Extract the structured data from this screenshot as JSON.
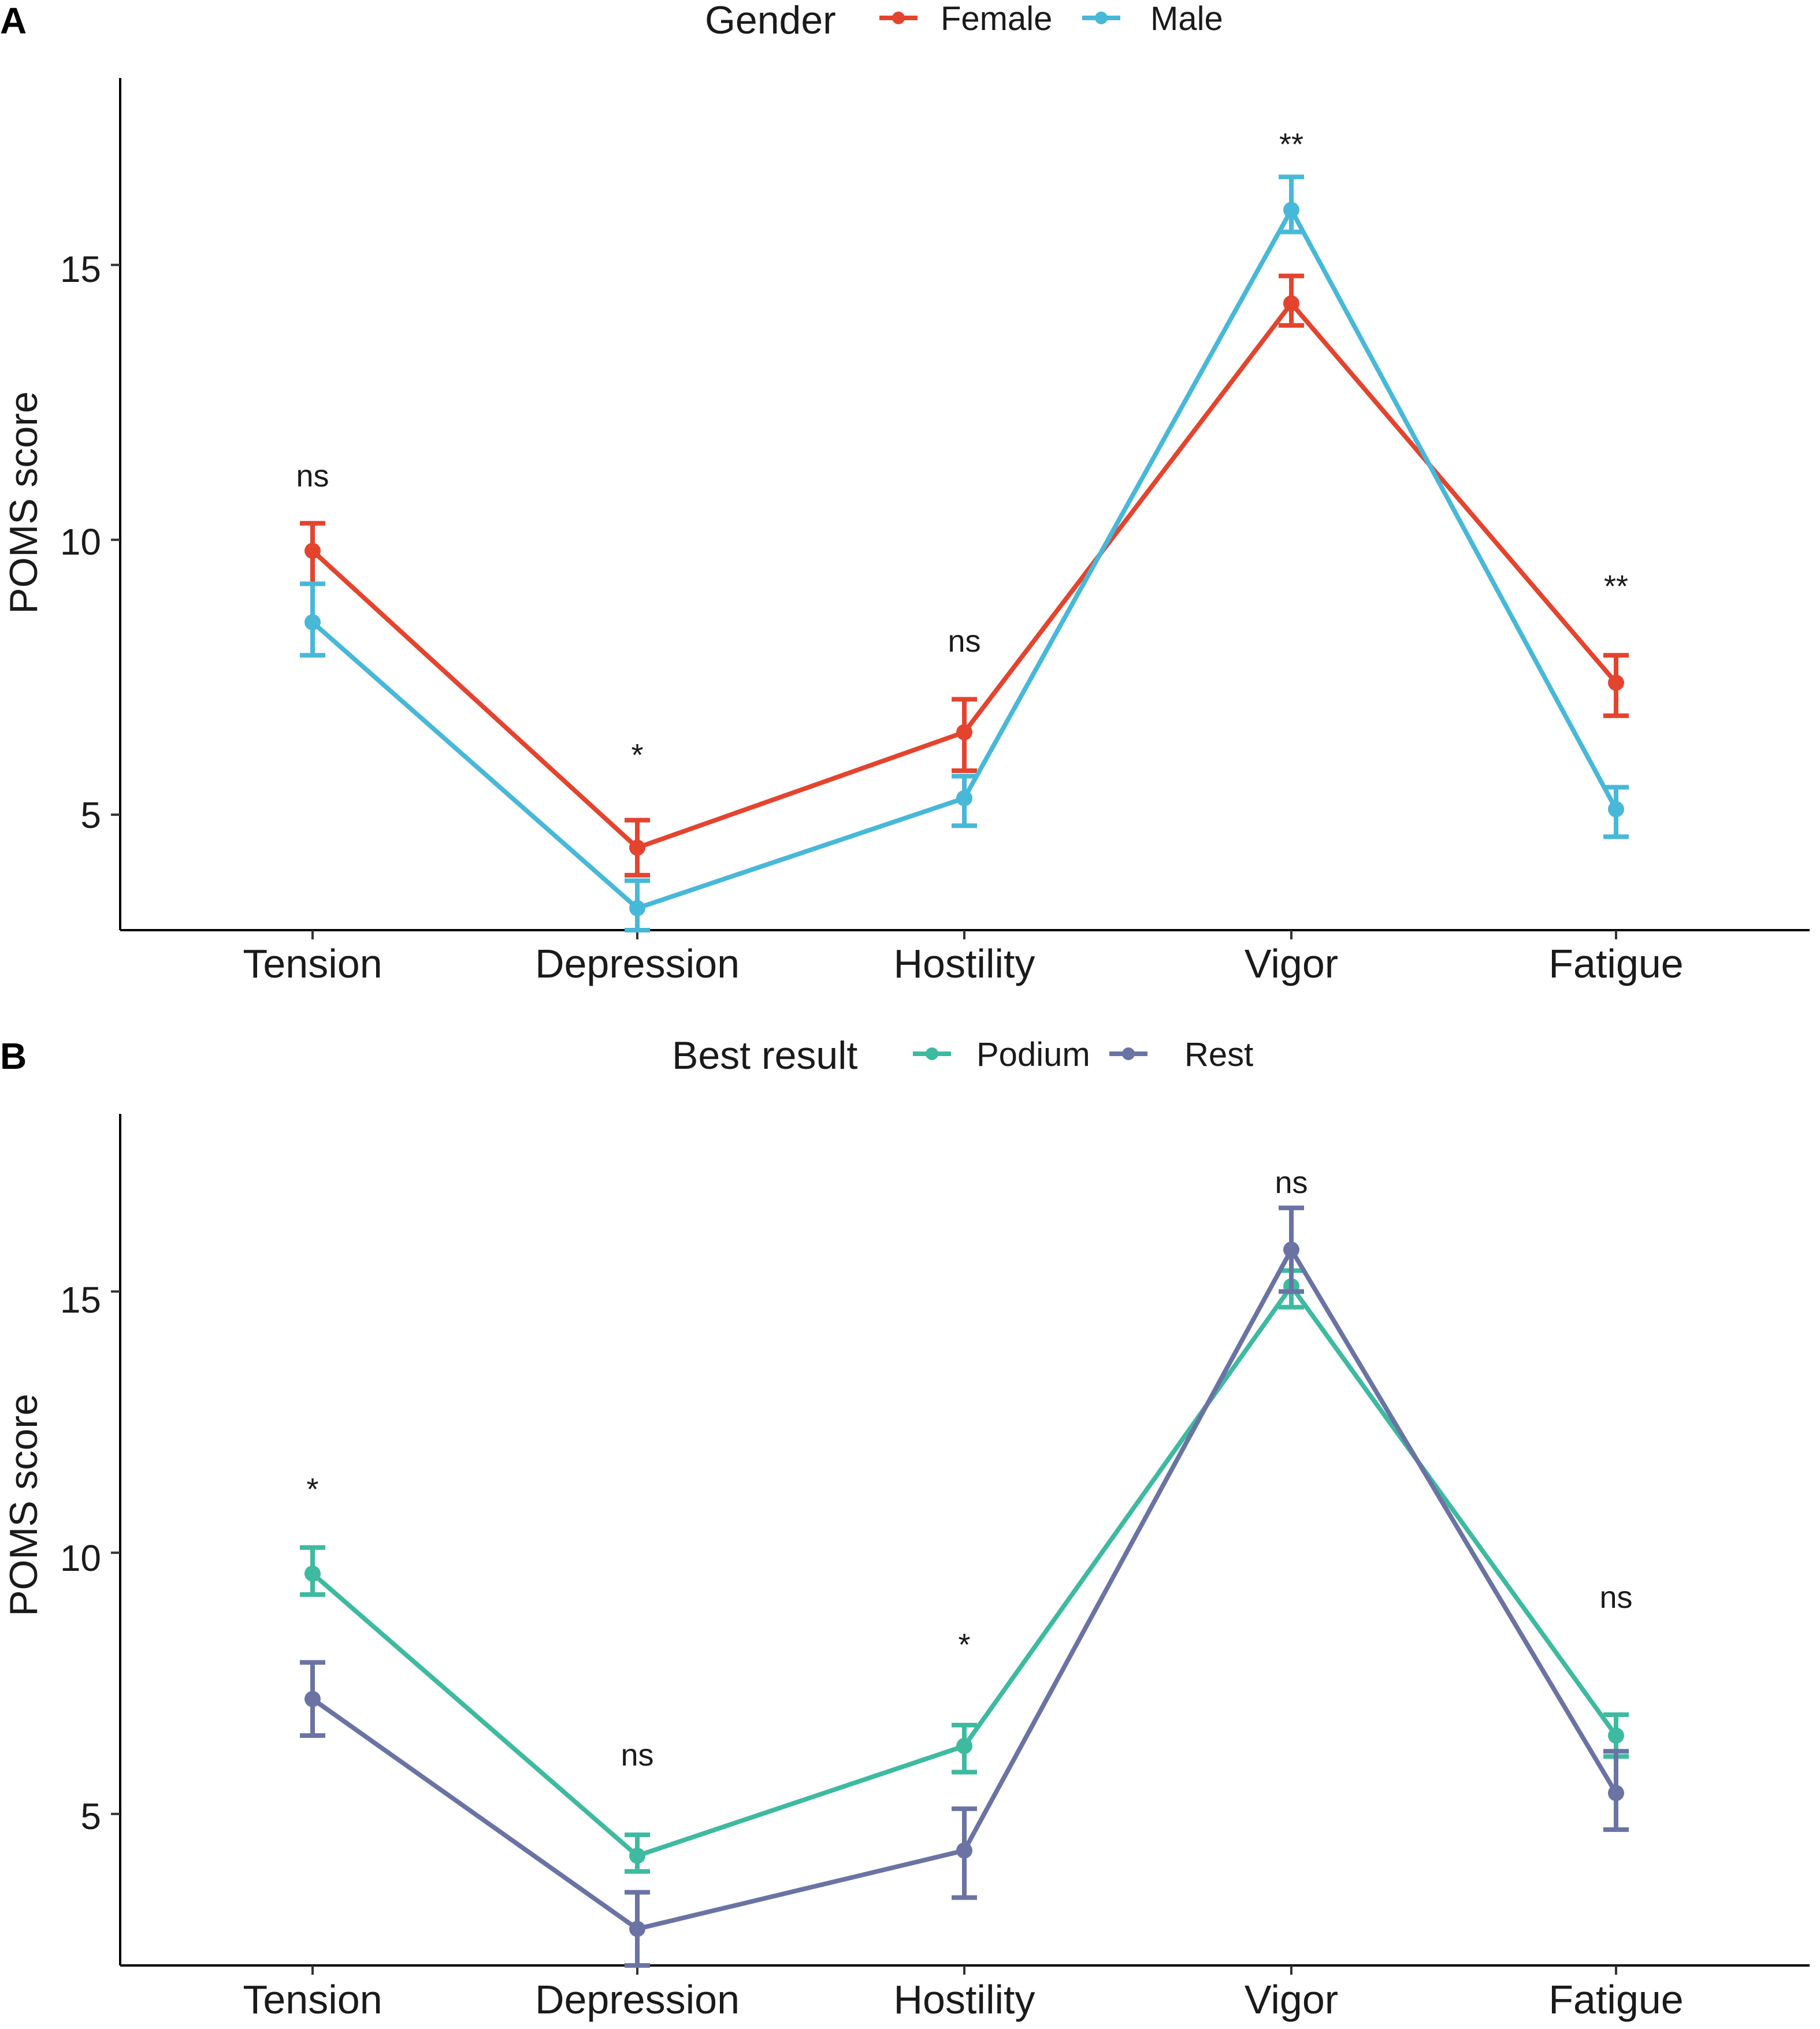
{
  "chart_data": [
    {
      "type": "line",
      "panel": "A",
      "legend_title": "Gender",
      "ylabel": "POMS score",
      "xlabel": "",
      "categories": [
        "Tension",
        "Depression",
        "Hostility",
        "Vigor",
        "Fatigue"
      ],
      "ylim": [
        2.9,
        18.4
      ],
      "yticks": [
        5,
        10,
        15
      ],
      "significance": [
        "ns",
        "*",
        "ns",
        "**",
        "**"
      ],
      "series": [
        {
          "name": "Female",
          "color": "#E4442E",
          "values": [
            9.8,
            4.4,
            6.5,
            14.3,
            7.4
          ],
          "err_low": [
            9.2,
            3.9,
            5.8,
            13.9,
            6.8
          ],
          "err_high": [
            10.3,
            4.9,
            7.1,
            14.8,
            7.9
          ]
        },
        {
          "name": "Male",
          "color": "#47B8D8",
          "values": [
            8.5,
            3.3,
            5.3,
            16.0,
            5.1
          ],
          "err_low": [
            7.9,
            2.9,
            4.8,
            15.6,
            4.6
          ],
          "err_high": [
            9.2,
            3.8,
            5.7,
            16.6,
            5.5
          ]
        }
      ]
    },
    {
      "type": "line",
      "panel": "B",
      "legend_title": "Best result",
      "ylabel": "POMS score",
      "xlabel": "",
      "categories": [
        "Tension",
        "Depression",
        "Hostility",
        "Vigor",
        "Fatigue"
      ],
      "ylim": [
        2.1,
        18.4
      ],
      "yticks": [
        5,
        10,
        15
      ],
      "significance": [
        "*",
        "ns",
        "*",
        "ns",
        "ns"
      ],
      "series": [
        {
          "name": "Podium",
          "color": "#3DBAA0",
          "values": [
            9.6,
            4.2,
            6.3,
            15.1,
            6.5
          ],
          "err_low": [
            9.2,
            3.9,
            5.8,
            14.7,
            6.1
          ],
          "err_high": [
            10.1,
            4.6,
            6.7,
            15.4,
            6.9
          ]
        },
        {
          "name": "Rest",
          "color": "#6A73A3",
          "values": [
            7.2,
            2.8,
            4.3,
            15.8,
            5.4
          ],
          "err_low": [
            6.5,
            2.1,
            3.4,
            15.0,
            4.7
          ],
          "err_high": [
            7.9,
            3.5,
            5.1,
            16.6,
            6.2
          ]
        }
      ]
    }
  ]
}
